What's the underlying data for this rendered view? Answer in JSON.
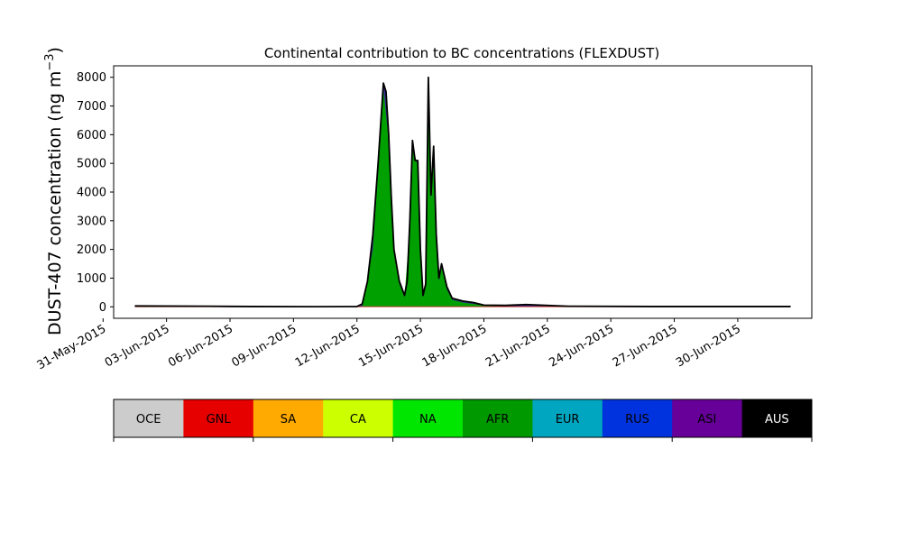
{
  "chart_data": {
    "type": "area",
    "title": "Continental contribution to BC concentrations (FLEXDUST)",
    "ylabel_main": "DUST-407 concentration (ng m",
    "ylabel_sup": "−3",
    "ylabel_close": ")",
    "ylim": [
      -400,
      8400
    ],
    "yticks": [
      0,
      1000,
      2000,
      3000,
      4000,
      5000,
      6000,
      7000,
      8000
    ],
    "xlim_days": [
      "2015-05-31T12:00",
      "2015-07-03T12:00"
    ],
    "xticks": [
      "31-May-2015",
      "03-Jun-2015",
      "06-Jun-2015",
      "09-Jun-2015",
      "12-Jun-2015",
      "15-Jun-2015",
      "18-Jun-2015",
      "21-Jun-2015",
      "24-Jun-2015",
      "27-Jun-2015",
      "30-Jun-2015"
    ],
    "xtick_dates": [
      "2015-05-31",
      "2015-06-03",
      "2015-06-06",
      "2015-06-09",
      "2015-06-12",
      "2015-06-15",
      "2015-06-18",
      "2015-06-21",
      "2015-06-24",
      "2015-06-27",
      "2015-06-30"
    ],
    "grid": false,
    "legend": "colorbar-bottom",
    "series_total": {
      "name": "",
      "color": "#000000",
      "x": [
        "2015-06-01T12:00",
        "2015-06-05T00:00",
        "2015-06-07T00:00",
        "2015-06-10T00:00",
        "2015-06-12T00:00",
        "2015-06-12T06:00",
        "2015-06-12T12:00",
        "2015-06-12T18:00",
        "2015-06-13T00:00",
        "2015-06-13T06:00",
        "2015-06-13T09:00",
        "2015-06-13T12:00",
        "2015-06-13T15:00",
        "2015-06-13T18:00",
        "2015-06-14T00:00",
        "2015-06-14T06:00",
        "2015-06-14T09:00",
        "2015-06-14T12:00",
        "2015-06-14T15:00",
        "2015-06-14T18:00",
        "2015-06-14T21:00",
        "2015-06-15T00:00",
        "2015-06-15T03:00",
        "2015-06-15T06:00",
        "2015-06-15T09:00",
        "2015-06-15T12:00",
        "2015-06-15T15:00",
        "2015-06-15T18:00",
        "2015-06-15T21:00",
        "2015-06-16T00:00",
        "2015-06-16T06:00",
        "2015-06-16T12:00",
        "2015-06-17T00:00",
        "2015-06-17T12:00",
        "2015-06-18T00:00",
        "2015-06-19T00:00",
        "2015-06-20T00:00",
        "2015-06-22T00:00",
        "2015-06-26T00:00",
        "2015-07-02T12:00"
      ],
      "values": [
        30,
        20,
        10,
        5,
        10,
        100,
        900,
        2500,
        5000,
        7800,
        7500,
        6000,
        3800,
        2000,
        900,
        400,
        900,
        3000,
        5800,
        5100,
        5100,
        2000,
        400,
        800,
        8000,
        3900,
        5600,
        2500,
        1000,
        1500,
        700,
        300,
        200,
        150,
        60,
        50,
        80,
        20,
        10,
        10
      ]
    },
    "series_afr": {
      "name": "",
      "color": "#00a000",
      "x": [
        "2015-06-12T06:00",
        "2015-06-12T18:00",
        "2015-06-13T00:00",
        "2015-06-13T06:00",
        "2015-06-13T12:00",
        "2015-06-13T18:00",
        "2015-06-14T00:00",
        "2015-06-14T06:00",
        "2015-06-14T12:00",
        "2015-06-14T15:00",
        "2015-06-14T21:00",
        "2015-06-15T00:00",
        "2015-06-15T03:00",
        "2015-06-15T06:00",
        "2015-06-15T09:00",
        "2015-06-15T12:00",
        "2015-06-15T15:00",
        "2015-06-15T18:00",
        "2015-06-15T21:00",
        "2015-06-16T00:00",
        "2015-06-16T06:00",
        "2015-06-16T12:00",
        "2015-06-17T00:00",
        "2015-06-18T00:00",
        "2015-06-19T00:00"
      ],
      "values": [
        0,
        2000,
        4700,
        7600,
        5800,
        1900,
        800,
        350,
        2800,
        5600,
        4900,
        1800,
        350,
        700,
        7700,
        3700,
        5400,
        2400,
        900,
        1400,
        600,
        250,
        150,
        50,
        0
      ]
    },
    "colorbar": {
      "categories": [
        "OCE",
        "GNL",
        "SA",
        "CA",
        "NA",
        "AFR",
        "EUR",
        "RUS",
        "ASI",
        "AUS"
      ],
      "colors": [
        "#cccccc",
        "#e60000",
        "#ffaa00",
        "#ccff00",
        "#00e600",
        "#009900",
        "#00a6bf",
        "#0033dd",
        "#660099",
        "#000000"
      ],
      "text_colors": [
        "#000000",
        "#000000",
        "#000000",
        "#000000",
        "#000000",
        "#000000",
        "#000000",
        "#000000",
        "#000000",
        "#ffffff"
      ]
    }
  }
}
